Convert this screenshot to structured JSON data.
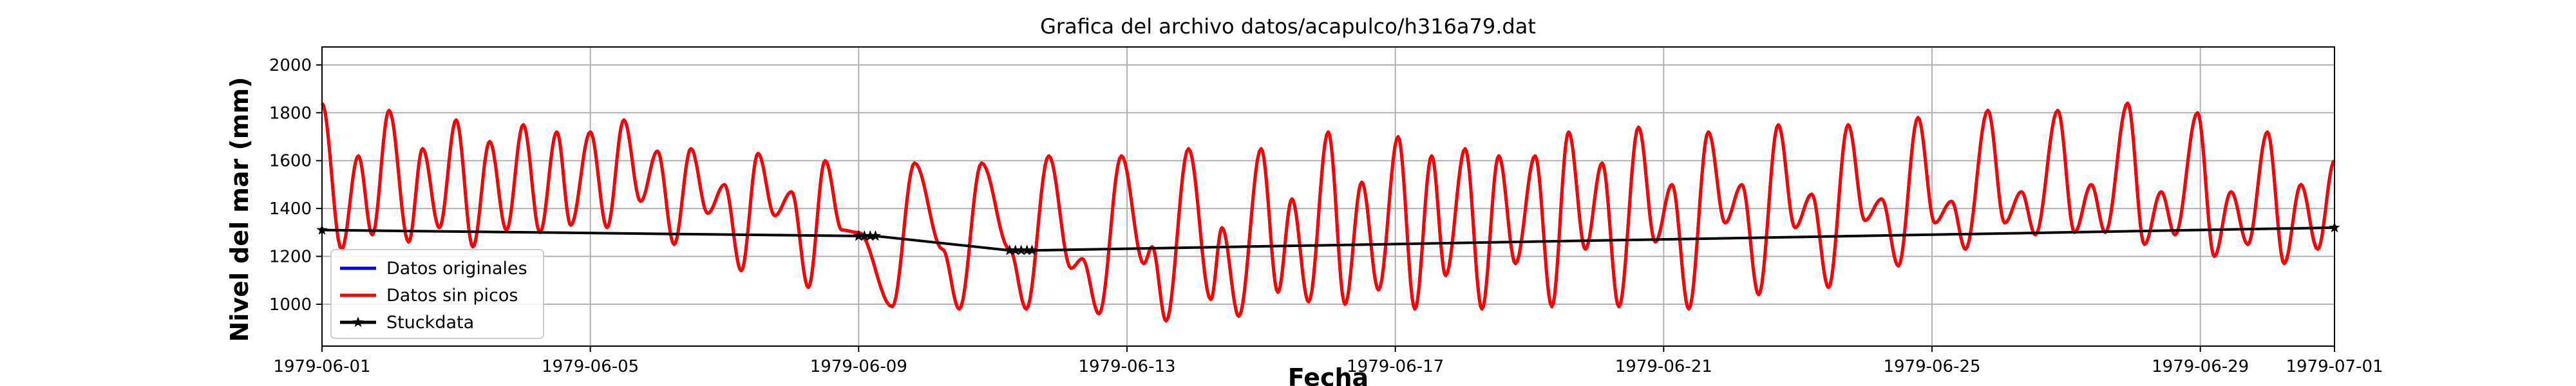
{
  "chart_data": {
    "type": "line",
    "title": "Grafica del archivo datos/acapulco/h316a79.dat",
    "xlabel": "Fecha",
    "ylabel": "Nivel del mar (mm)",
    "xlim": [
      "1979-06-01",
      "1979-07-01"
    ],
    "ylim": [
      825,
      2075
    ],
    "grid": true,
    "legend_position": "lower-left",
    "x_ticks": [
      "1979-06-01",
      "1979-06-05",
      "1979-06-09",
      "1979-06-13",
      "1979-06-17",
      "1979-06-21",
      "1979-06-25",
      "1979-06-29",
      "1979-07-01"
    ],
    "y_ticks": [
      1000,
      1200,
      1400,
      1600,
      1800,
      2000
    ],
    "tide_extrema": {
      "name": "Datos sin picos",
      "color": "#ff0000",
      "points": [
        [
          "1979-06-01T00:00",
          1840
        ],
        [
          "1979-06-01T07:00",
          1230
        ],
        [
          "1979-06-01T13:00",
          1620
        ],
        [
          "1979-06-01T18:00",
          1290
        ],
        [
          "1979-06-02T00:00",
          1810
        ],
        [
          "1979-06-02T07:00",
          1260
        ],
        [
          "1979-06-02T12:00",
          1650
        ],
        [
          "1979-06-02T18:00",
          1320
        ],
        [
          "1979-06-03T00:00",
          1770
        ],
        [
          "1979-06-03T06:00",
          1240
        ],
        [
          "1979-06-03T12:00",
          1680
        ],
        [
          "1979-06-03T18:00",
          1310
        ],
        [
          "1979-06-04T00:00",
          1750
        ],
        [
          "1979-06-04T06:00",
          1300
        ],
        [
          "1979-06-04T12:00",
          1720
        ],
        [
          "1979-06-04T17:00",
          1330
        ],
        [
          "1979-06-05T00:00",
          1720
        ],
        [
          "1979-06-05T06:00",
          1320
        ],
        [
          "1979-06-05T12:00",
          1770
        ],
        [
          "1979-06-05T18:00",
          1430
        ],
        [
          "1979-06-06T00:00",
          1640
        ],
        [
          "1979-06-06T06:00",
          1250
        ],
        [
          "1979-06-06T12:00",
          1650
        ],
        [
          "1979-06-06T18:00",
          1380
        ],
        [
          "1979-06-07T00:00",
          1500
        ],
        [
          "1979-06-07T06:00",
          1140
        ],
        [
          "1979-06-07T12:00",
          1630
        ],
        [
          "1979-06-07T18:00",
          1370
        ],
        [
          "1979-06-08T00:00",
          1470
        ],
        [
          "1979-06-08T06:00",
          1070
        ],
        [
          "1979-06-08T12:00",
          1600
        ],
        [
          "1979-06-08T18:00",
          1310
        ],
        [
          "1979-06-09T00:00",
          1300
        ],
        [
          "1979-06-09T12:00",
          990
        ],
        [
          "1979-06-09T20:00",
          1590
        ],
        [
          "1979-06-10T06:00",
          1230
        ],
        [
          "1979-06-10T12:00",
          980
        ],
        [
          "1979-06-10T20:00",
          1590
        ],
        [
          "1979-06-11T06:00",
          1230
        ],
        [
          "1979-06-11T12:00",
          980
        ],
        [
          "1979-06-11T20:00",
          1620
        ],
        [
          "1979-06-12T04:00",
          1150
        ],
        [
          "1979-06-12T08:00",
          1190
        ],
        [
          "1979-06-12T14:00",
          960
        ],
        [
          "1979-06-12T22:00",
          1620
        ],
        [
          "1979-06-13T06:00",
          1170
        ],
        [
          "1979-06-13T09:00",
          1240
        ],
        [
          "1979-06-13T14:00",
          930
        ],
        [
          "1979-06-13T22:00",
          1650
        ],
        [
          "1979-06-14T06:00",
          1020
        ],
        [
          "1979-06-14T10:00",
          1320
        ],
        [
          "1979-06-14T16:00",
          950
        ],
        [
          "1979-06-15T00:00",
          1650
        ],
        [
          "1979-06-15T06:00",
          1050
        ],
        [
          "1979-06-15T11:00",
          1440
        ],
        [
          "1979-06-15T17:00",
          1010
        ],
        [
          "1979-06-16T00:00",
          1720
        ],
        [
          "1979-06-16T06:00",
          1000
        ],
        [
          "1979-06-16T12:00",
          1510
        ],
        [
          "1979-06-16T18:00",
          1060
        ],
        [
          "1979-06-17T01:00",
          1700
        ],
        [
          "1979-06-17T07:00",
          980
        ],
        [
          "1979-06-17T13:00",
          1620
        ],
        [
          "1979-06-17T18:00",
          1120
        ],
        [
          "1979-06-18T01:00",
          1650
        ],
        [
          "1979-06-18T07:00",
          980
        ],
        [
          "1979-06-18T13:00",
          1620
        ],
        [
          "1979-06-18T19:00",
          1170
        ],
        [
          "1979-06-19T02:00",
          1620
        ],
        [
          "1979-06-19T08:00",
          990
        ],
        [
          "1979-06-19T14:00",
          1720
        ],
        [
          "1979-06-19T20:00",
          1230
        ],
        [
          "1979-06-20T02:00",
          1590
        ],
        [
          "1979-06-20T08:00",
          990
        ],
        [
          "1979-06-20T15:00",
          1740
        ],
        [
          "1979-06-20T21:00",
          1260
        ],
        [
          "1979-06-21T03:00",
          1500
        ],
        [
          "1979-06-21T09:00",
          980
        ],
        [
          "1979-06-21T16:00",
          1720
        ],
        [
          "1979-06-21T22:00",
          1340
        ],
        [
          "1979-06-22T04:00",
          1500
        ],
        [
          "1979-06-22T10:00",
          1040
        ],
        [
          "1979-06-22T17:00",
          1750
        ],
        [
          "1979-06-22T23:00",
          1320
        ],
        [
          "1979-06-23T05:00",
          1460
        ],
        [
          "1979-06-23T11:00",
          1070
        ],
        [
          "1979-06-23T18:00",
          1750
        ],
        [
          "1979-06-24T00:00",
          1350
        ],
        [
          "1979-06-24T06:00",
          1440
        ],
        [
          "1979-06-24T12:00",
          1160
        ],
        [
          "1979-06-24T19:00",
          1780
        ],
        [
          "1979-06-25T01:00",
          1340
        ],
        [
          "1979-06-25T07:00",
          1430
        ],
        [
          "1979-06-25T12:00",
          1230
        ],
        [
          "1979-06-25T20:00",
          1810
        ],
        [
          "1979-06-26T02:00",
          1340
        ],
        [
          "1979-06-26T08:00",
          1470
        ],
        [
          "1979-06-26T13:00",
          1290
        ],
        [
          "1979-06-26T21:00",
          1810
        ],
        [
          "1979-06-27T03:00",
          1300
        ],
        [
          "1979-06-27T09:00",
          1500
        ],
        [
          "1979-06-27T14:00",
          1300
        ],
        [
          "1979-06-27T22:00",
          1840
        ],
        [
          "1979-06-28T04:00",
          1250
        ],
        [
          "1979-06-28T10:00",
          1470
        ],
        [
          "1979-06-28T15:00",
          1290
        ],
        [
          "1979-06-28T23:00",
          1800
        ],
        [
          "1979-06-29T05:00",
          1200
        ],
        [
          "1979-06-29T11:00",
          1470
        ],
        [
          "1979-06-29T17:00",
          1250
        ],
        [
          "1979-06-30T00:00",
          1720
        ],
        [
          "1979-06-30T06:00",
          1170
        ],
        [
          "1979-06-30T12:00",
          1500
        ],
        [
          "1979-06-30T18:00",
          1230
        ],
        [
          "1979-07-01T00:00",
          1600
        ]
      ]
    },
    "series": [
      {
        "name": "Datos originales",
        "color": "#0000ff",
        "marker": "none"
      },
      {
        "name": "Datos sin picos",
        "color": "#ff0000",
        "marker": "none"
      },
      {
        "name": "Stuckdata",
        "color": "#000000",
        "marker": "star",
        "points": [
          [
            "1979-06-01T00:00",
            1310
          ],
          [
            "1979-06-09T00:00",
            1285
          ],
          [
            "1979-06-09T06:00",
            1285
          ],
          [
            "1979-06-11T06:00",
            1225
          ],
          [
            "1979-06-11T14:00",
            1225
          ],
          [
            "1979-07-01T00:00",
            1320
          ]
        ]
      }
    ]
  }
}
